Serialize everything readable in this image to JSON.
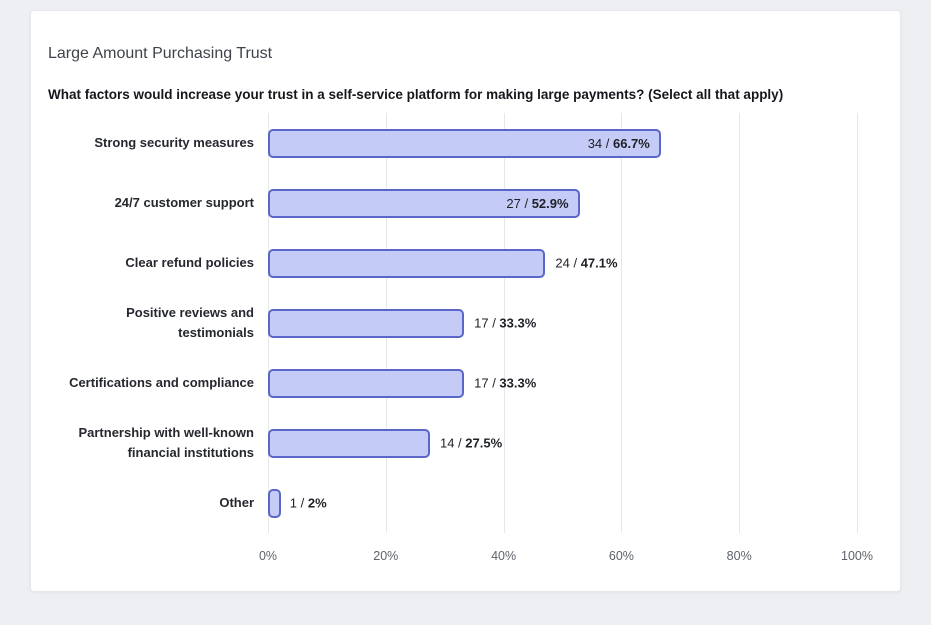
{
  "chart_data": {
    "type": "bar",
    "orientation": "horizontal",
    "title": "Large Amount Purchasing Trust",
    "question": "What factors would increase your trust in a self-service platform for making large payments? (Select all that apply)",
    "categories": [
      "Strong security measures",
      "24/7 customer support",
      "Clear refund policies",
      "Positive reviews and testimonials",
      "Certifications and compliance",
      "Partnership with well-known financial institutions",
      "Other"
    ],
    "counts": [
      34,
      27,
      24,
      17,
      17,
      14,
      1
    ],
    "values": [
      66.7,
      52.9,
      47.1,
      33.3,
      33.3,
      27.5,
      2
    ],
    "items": [
      {
        "label": "Strong security measures",
        "count": 34,
        "pct": 66.7,
        "count_part": "34 / ",
        "pct_part": "66.7%"
      },
      {
        "label": "24/7 customer support",
        "count": 27,
        "pct": 52.9,
        "count_part": "27 / ",
        "pct_part": "52.9%"
      },
      {
        "label": "Clear refund policies",
        "count": 24,
        "pct": 47.1,
        "count_part": "24 / ",
        "pct_part": "47.1%"
      },
      {
        "label": "Positive reviews and testimonials",
        "count": 17,
        "pct": 33.3,
        "count_part": "17 / ",
        "pct_part": "33.3%"
      },
      {
        "label": "Certifications and compliance",
        "count": 17,
        "pct": 33.3,
        "count_part": "17 / ",
        "pct_part": "33.3%"
      },
      {
        "label": "Partnership with well-known financial institutions",
        "count": 14,
        "pct": 27.5,
        "count_part": "14 / ",
        "pct_part": "27.5%"
      },
      {
        "label": "Other",
        "count": 1,
        "pct": 2,
        "count_part": "1 / ",
        "pct_part": "2%"
      }
    ],
    "x_ticks": [
      "0%",
      "20%",
      "40%",
      "60%",
      "80%",
      "100%"
    ],
    "xlim": [
      0,
      100
    ],
    "inside_label_threshold": 50,
    "grid": true,
    "legend": "none",
    "colors": {
      "bar_fill": "#c5cbf7",
      "bar_border": "#5a67c8",
      "gridline": "#e6e7ea",
      "page_background": "#edeff3",
      "card_background": "#ffffff"
    }
  }
}
